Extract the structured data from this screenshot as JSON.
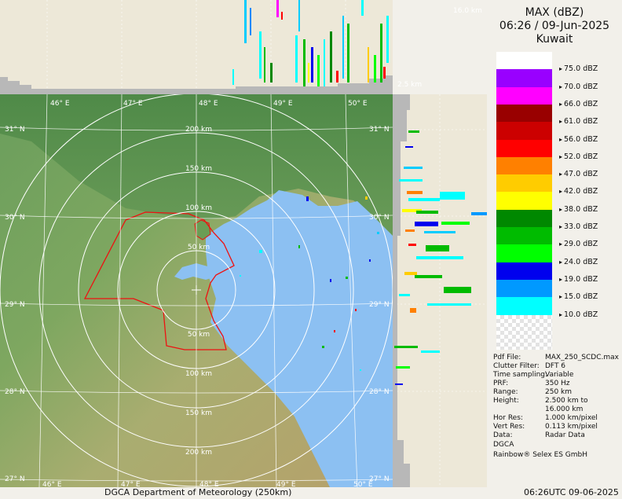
{
  "title": {
    "product": "MAX (dBZ)",
    "datetime": "06:26 / 09-Jun-2025",
    "site": "Kuwait"
  },
  "legend": [
    {
      "color": "#ffffff",
      "label": "75.0 dBZ"
    },
    {
      "color": "#9900ff",
      "label": "70.0 dBZ"
    },
    {
      "color": "#ff00ff",
      "label": "66.0 dBZ"
    },
    {
      "color": "#990000",
      "label": "61.0 dBZ"
    },
    {
      "color": "#cc0000",
      "label": "56.0 dBZ"
    },
    {
      "color": "#ff0000",
      "label": "52.0 dBZ"
    },
    {
      "color": "#ff8000",
      "label": "47.0 dBZ"
    },
    {
      "color": "#ffcc00",
      "label": "42.0 dBZ"
    },
    {
      "color": "#ffff00",
      "label": "38.0 dBZ"
    },
    {
      "color": "#008800",
      "label": "33.0 dBZ"
    },
    {
      "color": "#00bb00",
      "label": "29.0 dBZ"
    },
    {
      "color": "#00ff00",
      "label": "24.0 dBZ"
    },
    {
      "color": "#0000ee",
      "label": "19.0 dBZ"
    },
    {
      "color": "#0099ff",
      "label": "15.0 dBZ"
    },
    {
      "color": "#00ffff",
      "label": "10.0 dBZ"
    }
  ],
  "info": [
    {
      "key": "Pdf File:",
      "value": "MAX_250_SCDC.max"
    },
    {
      "key": "Clutter Filter:",
      "value": "DFT 6"
    },
    {
      "key": "Time sampling:",
      "value": "Variable"
    },
    {
      "key": "PRF:",
      "value": "350 Hz"
    },
    {
      "key": "Range:",
      "value": "250 km"
    },
    {
      "key": "Height:",
      "value": "2.500 km to\n16.000 km"
    },
    {
      "key": "Hor Res:",
      "value": "1.000 km/pixel"
    },
    {
      "key": "Vert Res:",
      "value": "0.113 km/pixel"
    },
    {
      "key": "Data:",
      "value": "Radar Data"
    }
  ],
  "org": "DGCA",
  "vendor": "Rainbow® Selex ES GmbH",
  "footer": {
    "left": "DGCA Department of Meteorology (250km)",
    "right": "06:26UTC 09-06-2025"
  },
  "map": {
    "longitudes": [
      "46° E",
      "47° E",
      "48° E",
      "49° E",
      "50° E"
    ],
    "latitudes": [
      "31° N",
      "30° N",
      "29° N",
      "28° N",
      "27° N"
    ],
    "rings_north": [
      "200 km",
      "150 km",
      "100 km",
      "50 km"
    ],
    "rings_south": [
      "50 km",
      "100 km",
      "150 km",
      "200 km"
    ],
    "top_height": "16.0 km",
    "base_height": "2.5 km"
  },
  "colors": {
    "sea": "#8cc0f2",
    "land_green": "#5f9a55",
    "desert": "#b8ad72",
    "border": "#ee1111"
  }
}
